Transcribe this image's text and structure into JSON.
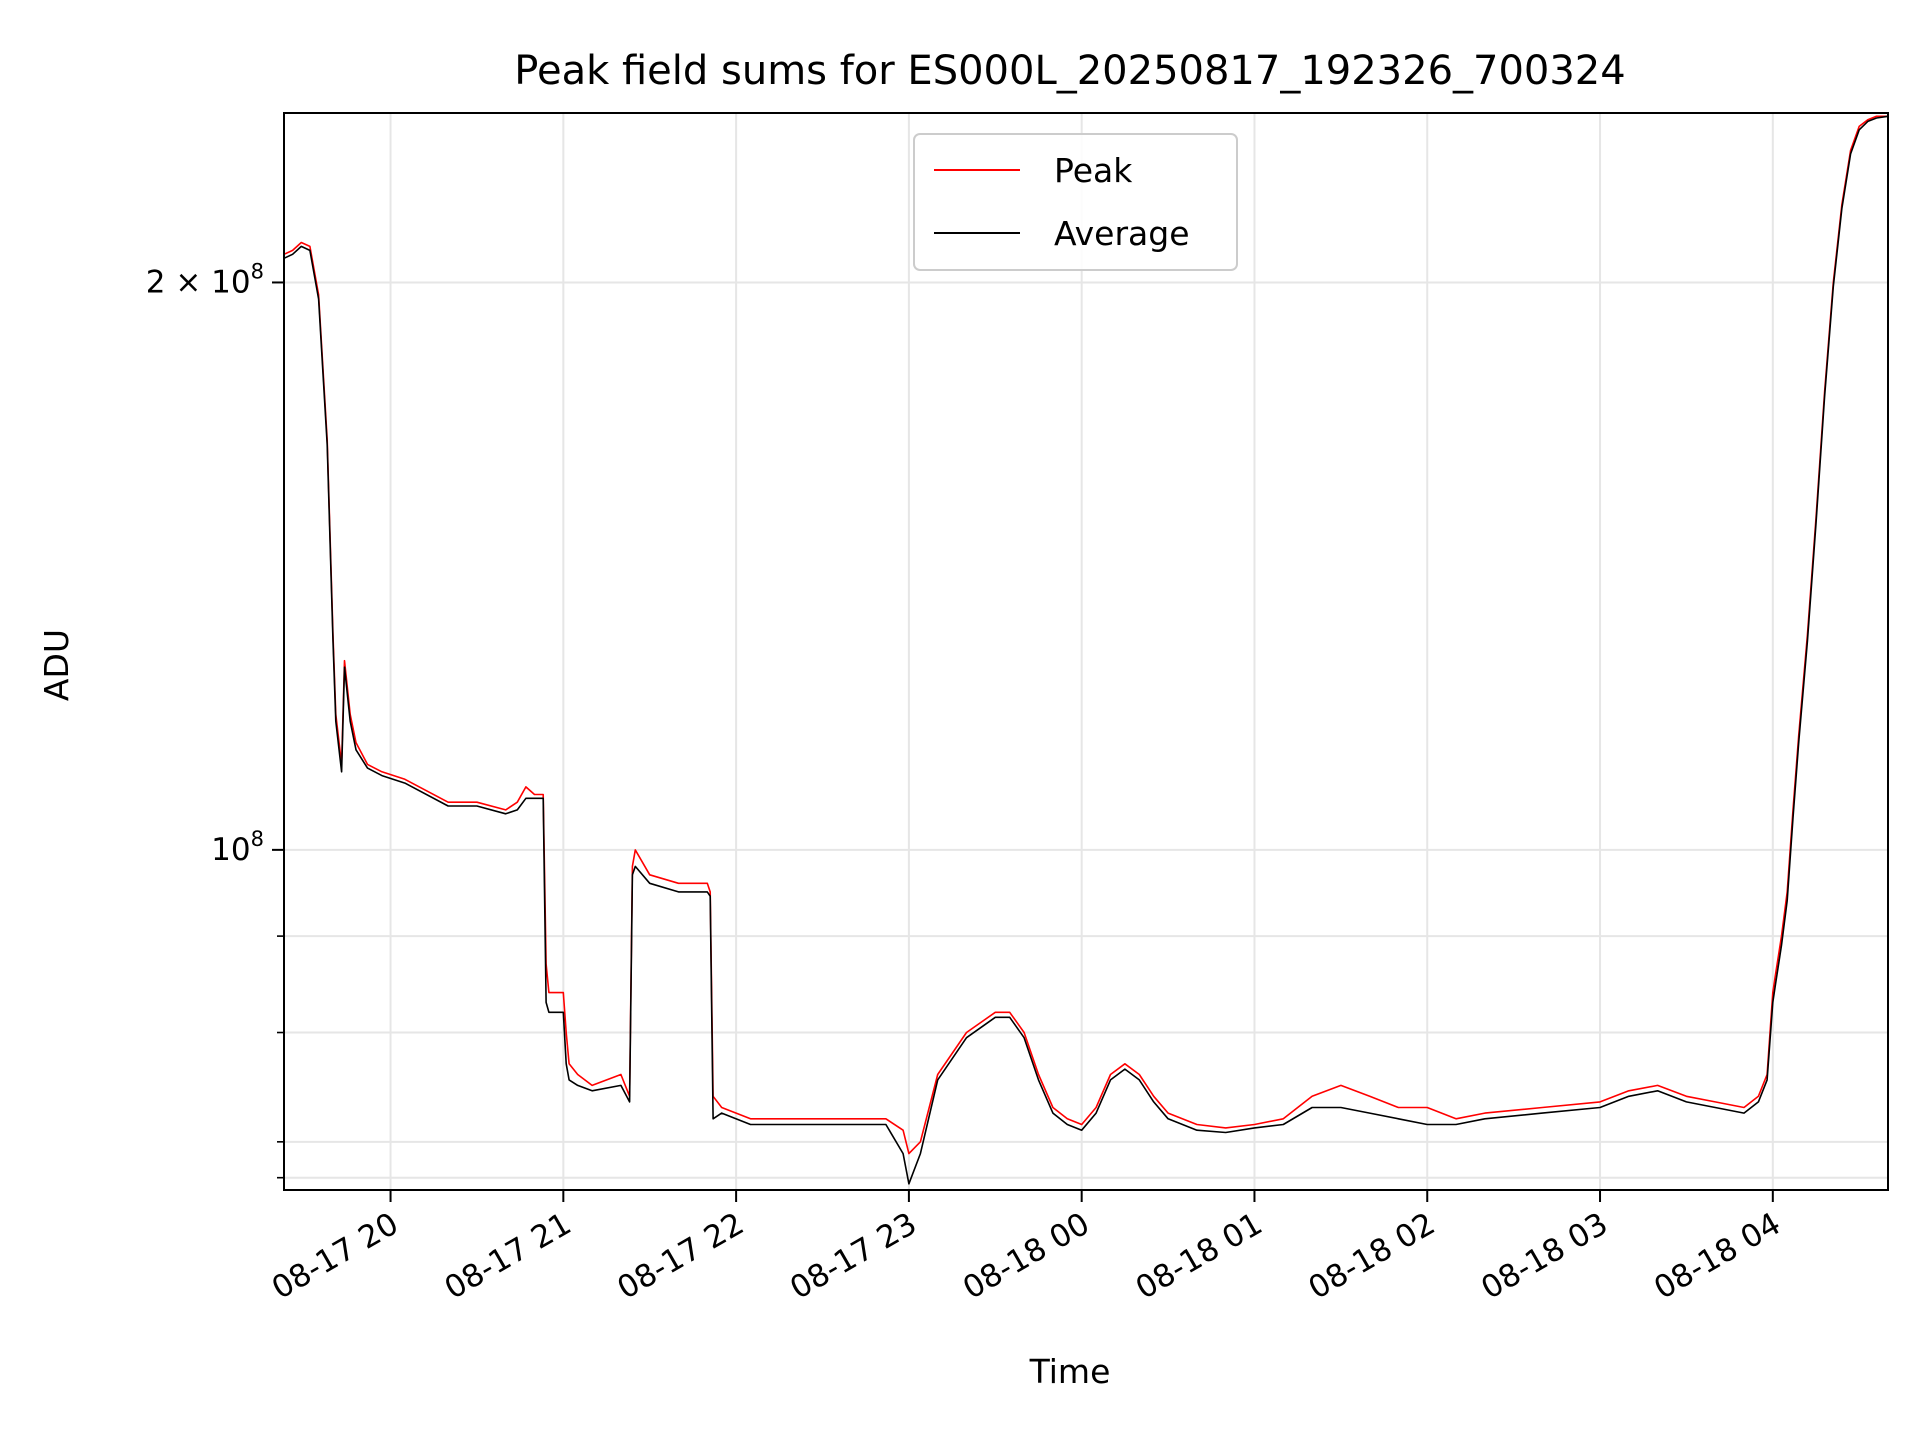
{
  "chart_data": {
    "type": "line",
    "title": "Peak field sums for ES000L_20250817_192326_700324",
    "xlabel": "Time",
    "ylabel": "ADU",
    "yscale": "log",
    "ylim": [
      66000000,
      246000000
    ],
    "xlim": [
      "2025-08-17T19:23",
      "2025-08-18T04:40"
    ],
    "x_ticks": [
      {
        "value": "2025-08-17T20:00",
        "label": "08-17 20"
      },
      {
        "value": "2025-08-17T21:00",
        "label": "08-17 21"
      },
      {
        "value": "2025-08-17T22:00",
        "label": "08-17 22"
      },
      {
        "value": "2025-08-17T23:00",
        "label": "08-17 23"
      },
      {
        "value": "2025-08-18T00:00",
        "label": "08-18 00"
      },
      {
        "value": "2025-08-18T01:00",
        "label": "08-18 01"
      },
      {
        "value": "2025-08-18T02:00",
        "label": "08-18 02"
      },
      {
        "value": "2025-08-18T03:00",
        "label": "08-18 03"
      },
      {
        "value": "2025-08-18T04:00",
        "label": "08-18 04"
      }
    ],
    "y_major_ticks": [
      {
        "value": 100000000,
        "base": "10",
        "exp": "8"
      },
      {
        "value": 200000000,
        "base": "2 × 10",
        "exp": "8"
      }
    ],
    "y_minor_ticks": [
      67000000,
      70000000,
      80000000,
      90000000
    ],
    "grid": true,
    "legend_position": "top-center",
    "series": [
      {
        "name": "Peak",
        "color": "#ff0000",
        "x": [
          "2025-08-17T19:23",
          "2025-08-17T19:26",
          "2025-08-17T19:29",
          "2025-08-17T19:32",
          "2025-08-17T19:35",
          "2025-08-17T19:38",
          "2025-08-17T19:40",
          "2025-08-17T19:41",
          "2025-08-17T19:43",
          "2025-08-17T19:44",
          "2025-08-17T19:46",
          "2025-08-17T19:48",
          "2025-08-17T19:52",
          "2025-08-17T19:57",
          "2025-08-17T20:05",
          "2025-08-17T20:20",
          "2025-08-17T20:30",
          "2025-08-17T20:40",
          "2025-08-17T20:44",
          "2025-08-17T20:47",
          "2025-08-17T20:50",
          "2025-08-17T20:53",
          "2025-08-17T20:54",
          "2025-08-17T20:55",
          "2025-08-17T21:00",
          "2025-08-17T21:01",
          "2025-08-17T21:02",
          "2025-08-17T21:05",
          "2025-08-17T21:10",
          "2025-08-17T21:20",
          "2025-08-17T21:23",
          "2025-08-17T21:24",
          "2025-08-17T21:25",
          "2025-08-17T21:30",
          "2025-08-17T21:40",
          "2025-08-17T21:50",
          "2025-08-17T21:51",
          "2025-08-17T21:52",
          "2025-08-17T21:55",
          "2025-08-17T22:05",
          "2025-08-17T22:20",
          "2025-08-17T22:40",
          "2025-08-17T22:50",
          "2025-08-17T22:52",
          "2025-08-17T22:58",
          "2025-08-17T23:00",
          "2025-08-17T23:04",
          "2025-08-17T23:10",
          "2025-08-17T23:20",
          "2025-08-17T23:30",
          "2025-08-17T23:35",
          "2025-08-17T23:40",
          "2025-08-17T23:45",
          "2025-08-17T23:50",
          "2025-08-17T23:55",
          "2025-08-18T00:00",
          "2025-08-18T00:05",
          "2025-08-18T00:10",
          "2025-08-18T00:15",
          "2025-08-18T00:20",
          "2025-08-18T00:25",
          "2025-08-18T00:30",
          "2025-08-18T00:40",
          "2025-08-18T00:50",
          "2025-08-18T01:00",
          "2025-08-18T01:10",
          "2025-08-18T01:20",
          "2025-08-18T01:30",
          "2025-08-18T01:40",
          "2025-08-18T01:50",
          "2025-08-18T02:00",
          "2025-08-18T02:10",
          "2025-08-18T02:20",
          "2025-08-18T02:40",
          "2025-08-18T03:00",
          "2025-08-18T03:10",
          "2025-08-18T03:20",
          "2025-08-18T03:30",
          "2025-08-18T03:40",
          "2025-08-18T03:50",
          "2025-08-18T03:55",
          "2025-08-18T03:58",
          "2025-08-18T04:00",
          "2025-08-18T04:01",
          "2025-08-18T04:03",
          "2025-08-18T04:05",
          "2025-08-18T04:07",
          "2025-08-18T04:09",
          "2025-08-18T04:12",
          "2025-08-18T04:15",
          "2025-08-18T04:18",
          "2025-08-18T04:21",
          "2025-08-18T04:24",
          "2025-08-18T04:27",
          "2025-08-18T04:30",
          "2025-08-18T04:33",
          "2025-08-18T04:36",
          "2025-08-18T04:40"
        ],
        "y": [
          207000000,
          208000000,
          210000000,
          209000000,
          197000000,
          165000000,
          130000000,
          118000000,
          111000000,
          126000000,
          118000000,
          114000000,
          111000000,
          110000000,
          109000000,
          106000000,
          106000000,
          105000000,
          106000000,
          108000000,
          107000000,
          107000000,
          87000000,
          84000000,
          84000000,
          80000000,
          77000000,
          76000000,
          75000000,
          76000000,
          74000000,
          98000000,
          100000000,
          97000000,
          96000000,
          96000000,
          95000000,
          74000000,
          73000000,
          72000000,
          72000000,
          72000000,
          72000000,
          72000000,
          71000000,
          69000000,
          70000000,
          76000000,
          80000000,
          82000000,
          82000000,
          80000000,
          76000000,
          73000000,
          72000000,
          71500000,
          73000000,
          76000000,
          77000000,
          76000000,
          74000000,
          72500000,
          71500000,
          71200000,
          71500000,
          72000000,
          74000000,
          75000000,
          74000000,
          73000000,
          73000000,
          72000000,
          72500000,
          73000000,
          73500000,
          74500000,
          75000000,
          74000000,
          73500000,
          73000000,
          74000000,
          76000000,
          84000000,
          86000000,
          90000000,
          95000000,
          105000000,
          115000000,
          130000000,
          150000000,
          175000000,
          200000000,
          220000000,
          235000000,
          242000000,
          244000000,
          245000000,
          245000000
        ]
      },
      {
        "name": "Average",
        "color": "#000000",
        "x": [
          "2025-08-17T19:23",
          "2025-08-17T19:26",
          "2025-08-17T19:29",
          "2025-08-17T19:32",
          "2025-08-17T19:35",
          "2025-08-17T19:38",
          "2025-08-17T19:40",
          "2025-08-17T19:41",
          "2025-08-17T19:43",
          "2025-08-17T19:44",
          "2025-08-17T19:46",
          "2025-08-17T19:48",
          "2025-08-17T19:52",
          "2025-08-17T19:57",
          "2025-08-17T20:05",
          "2025-08-17T20:20",
          "2025-08-17T20:30",
          "2025-08-17T20:40",
          "2025-08-17T20:44",
          "2025-08-17T20:47",
          "2025-08-17T20:50",
          "2025-08-17T20:53",
          "2025-08-17T20:54",
          "2025-08-17T20:55",
          "2025-08-17T21:00",
          "2025-08-17T21:01",
          "2025-08-17T21:02",
          "2025-08-17T21:05",
          "2025-08-17T21:10",
          "2025-08-17T21:20",
          "2025-08-17T21:23",
          "2025-08-17T21:24",
          "2025-08-17T21:25",
          "2025-08-17T21:30",
          "2025-08-17T21:40",
          "2025-08-17T21:50",
          "2025-08-17T21:51",
          "2025-08-17T21:52",
          "2025-08-17T21:55",
          "2025-08-17T22:05",
          "2025-08-17T22:20",
          "2025-08-17T22:40",
          "2025-08-17T22:50",
          "2025-08-17T22:52",
          "2025-08-17T22:58",
          "2025-08-17T23:00",
          "2025-08-17T23:04",
          "2025-08-17T23:10",
          "2025-08-17T23:20",
          "2025-08-17T23:30",
          "2025-08-17T23:35",
          "2025-08-17T23:40",
          "2025-08-17T23:45",
          "2025-08-17T23:50",
          "2025-08-17T23:55",
          "2025-08-18T00:00",
          "2025-08-18T00:05",
          "2025-08-18T00:10",
          "2025-08-18T00:15",
          "2025-08-18T00:20",
          "2025-08-18T00:25",
          "2025-08-18T00:30",
          "2025-08-18T00:40",
          "2025-08-18T00:50",
          "2025-08-18T01:00",
          "2025-08-18T01:10",
          "2025-08-18T01:20",
          "2025-08-18T01:30",
          "2025-08-18T01:40",
          "2025-08-18T01:50",
          "2025-08-18T02:00",
          "2025-08-18T02:10",
          "2025-08-18T02:20",
          "2025-08-18T02:40",
          "2025-08-18T03:00",
          "2025-08-18T03:10",
          "2025-08-18T03:20",
          "2025-08-18T03:30",
          "2025-08-18T03:40",
          "2025-08-18T03:50",
          "2025-08-18T03:55",
          "2025-08-18T03:58",
          "2025-08-18T04:00",
          "2025-08-18T04:01",
          "2025-08-18T04:03",
          "2025-08-18T04:05",
          "2025-08-18T04:07",
          "2025-08-18T04:09",
          "2025-08-18T04:12",
          "2025-08-18T04:15",
          "2025-08-18T04:18",
          "2025-08-18T04:21",
          "2025-08-18T04:24",
          "2025-08-18T04:27",
          "2025-08-18T04:30",
          "2025-08-18T04:33",
          "2025-08-18T04:36",
          "2025-08-18T04:40"
        ],
        "y": [
          206000000,
          207000000,
          209000000,
          208000000,
          196000000,
          164000000,
          129000000,
          117000000,
          110000000,
          125000000,
          117000000,
          113000000,
          110500000,
          109500000,
          108500000,
          105500000,
          105500000,
          104500000,
          105000000,
          106500000,
          106500000,
          106500000,
          83000000,
          82000000,
          82000000,
          77000000,
          75500000,
          75000000,
          74500000,
          75000000,
          73500000,
          97000000,
          98000000,
          96000000,
          95000000,
          95000000,
          94500000,
          72000000,
          72500000,
          71500000,
          71500000,
          71500000,
          71500000,
          71500000,
          69000000,
          66500000,
          69000000,
          75500000,
          79500000,
          81500000,
          81500000,
          79500000,
          75500000,
          72500000,
          71500000,
          71000000,
          72500000,
          75500000,
          76500000,
          75500000,
          73500000,
          72000000,
          71000000,
          70800000,
          71200000,
          71500000,
          73000000,
          73000000,
          72500000,
          72000000,
          71500000,
          71500000,
          72000000,
          72500000,
          73000000,
          74000000,
          74500000,
          73500000,
          73000000,
          72500000,
          73500000,
          75500000,
          83000000,
          85000000,
          89000000,
          94000000,
          104000000,
          114000000,
          129000000,
          149000000,
          174000000,
          199000000,
          219000000,
          234000000,
          241000000,
          243500000,
          244500000,
          245000000
        ]
      }
    ]
  }
}
